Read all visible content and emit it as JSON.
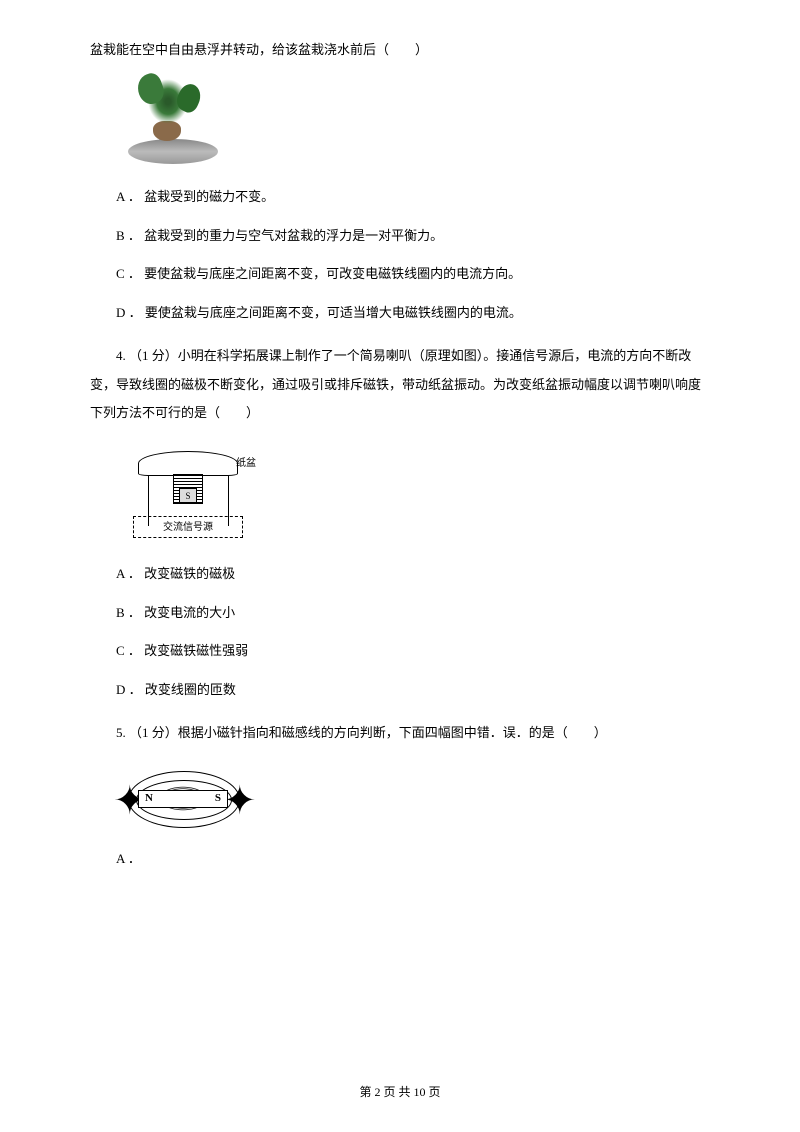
{
  "intro_line": "盆栽能在空中自由悬浮并转动，给该盆栽浇水前后（　　）",
  "q3": {
    "optA": "A ． 盆栽受到的磁力不变。",
    "optB": "B ． 盆栽受到的重力与空气对盆栽的浮力是一对平衡力。",
    "optC": "C ． 要使盆栽与底座之间距离不变，可改变电磁铁线圈内的电流方向。",
    "optD": "D ． 要使盆栽与底座之间距离不变，可适当增大电磁铁线圈内的电流。"
  },
  "q4": {
    "stem": "4. （1 分）小明在科学拓展课上制作了一个简易喇叭（原理如图）。接通信号源后，电流的方向不断改变，导致线圈的磁极不断变化，通过吸引或排斥磁铁，带动纸盆振动。为改变纸盆振动幅度以调节喇叭响度下列方法不可行的是（　　）",
    "speaker_label": "纸盆",
    "magnet_label": "S",
    "source_label": "交流信号源",
    "optA": "A ． 改变磁铁的磁极",
    "optB": "B ． 改变电流的大小",
    "optC": "C ． 改变磁铁磁性强弱",
    "optD": "D ． 改变线圈的匝数"
  },
  "q5": {
    "stem": "5. （1 分）根据小磁针指向和磁感线的方向判断，下面四幅图中错．误．的是（　　）",
    "pole_n": "N",
    "pole_s": "S",
    "optA": "A ．"
  },
  "footer": "第 2 页 共 10 页"
}
